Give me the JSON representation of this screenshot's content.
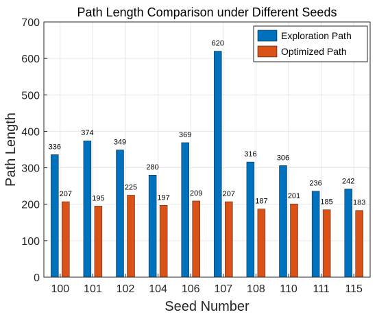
{
  "colors": {
    "exploration": "#0072BD",
    "optimized": "#D95319",
    "grid": "#e6e6e6",
    "axis": "#262626"
  },
  "chart_data": {
    "type": "bar",
    "title": "Path Length Comparison under Different Seeds",
    "xlabel": "Seed Number",
    "ylabel": "Path Length",
    "ylim": [
      0,
      700
    ],
    "yticks": [
      0,
      100,
      200,
      300,
      400,
      500,
      600,
      700
    ],
    "grid": true,
    "legend_position": "top-right",
    "categories": [
      "100",
      "101",
      "102",
      "104",
      "106",
      "107",
      "108",
      "110",
      "111",
      "115"
    ],
    "series": [
      {
        "name": "Exploration Path",
        "color": "#0072BD",
        "values": [
          336,
          374,
          349,
          280,
          369,
          620,
          316,
          306,
          236,
          242
        ]
      },
      {
        "name": "Optimized Path",
        "color": "#D95319",
        "values": [
          207,
          195,
          225,
          197,
          209,
          207,
          187,
          201,
          185,
          183
        ]
      }
    ]
  }
}
